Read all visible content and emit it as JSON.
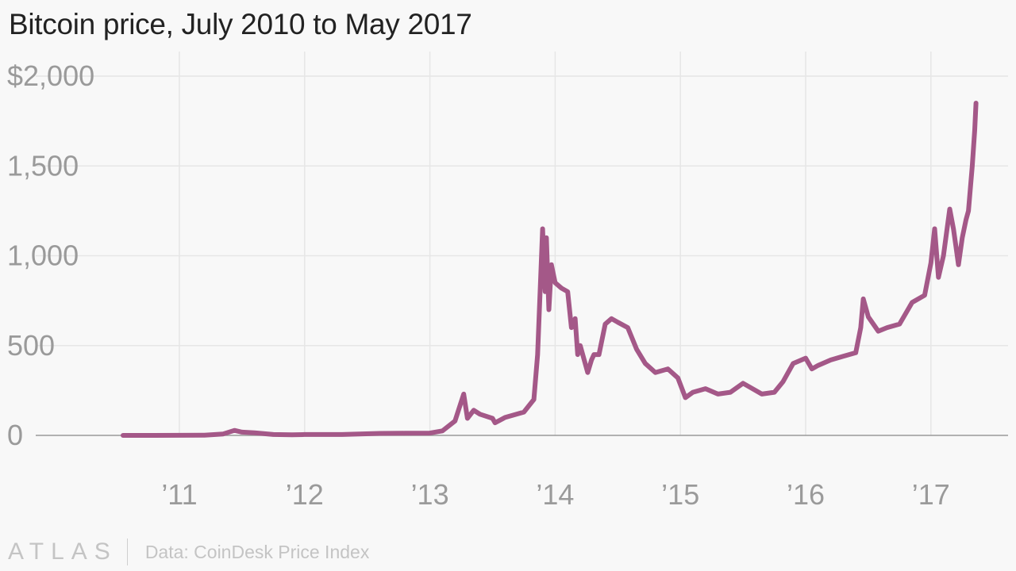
{
  "title": "Bitcoin price, July 2010 to May 2017",
  "footer": {
    "logo": "ATLAS",
    "source": "Data: CoinDesk Price Index"
  },
  "colors": {
    "line": "#a45888",
    "grid": "#e6e6e6",
    "axis": "#999999",
    "tick_text": "#9a9a9a",
    "background": "#f8f8f8"
  },
  "chart_data": {
    "type": "line",
    "title": "Bitcoin price, July 2010 to May 2017",
    "xlabel": "",
    "ylabel": "",
    "ylim": [
      0,
      2000
    ],
    "xlim": [
      2010.0,
      2017.6
    ],
    "yticks": [
      0,
      500,
      1000,
      1500,
      2000
    ],
    "ytick_labels": [
      "0",
      "500",
      "1,000",
      "1,500",
      "$2,000"
    ],
    "xticks": [
      2011,
      2012,
      2013,
      2014,
      2015,
      2016,
      2017
    ],
    "xtick_labels": [
      "’11",
      "’12",
      "’13",
      "’14",
      "’15",
      "’16",
      "’17"
    ],
    "grid": true,
    "series": [
      {
        "values_x": [
          2010.55,
          2010.8,
          2011.0,
          2011.2,
          2011.35,
          2011.44,
          2011.5,
          2011.6,
          2011.75,
          2011.9,
          2012.0,
          2012.3,
          2012.6,
          2012.8,
          2013.0,
          2013.1,
          2013.2,
          2013.27,
          2013.3,
          2013.35,
          2013.4,
          2013.5,
          2013.52,
          2013.6,
          2013.75,
          2013.83,
          2013.86,
          2013.9,
          2013.92,
          2013.93,
          2013.95,
          2013.97,
          2014.0,
          2014.05,
          2014.1,
          2014.13,
          2014.16,
          2014.18,
          2014.2,
          2014.26,
          2014.29,
          2014.31,
          2014.35,
          2014.4,
          2014.45,
          2014.5,
          2014.58,
          2014.65,
          2014.72,
          2014.8,
          2014.9,
          2014.98,
          2015.04,
          2015.1,
          2015.2,
          2015.3,
          2015.4,
          2015.5,
          2015.55,
          2015.65,
          2015.75,
          2015.82,
          2015.9,
          2016.0,
          2016.05,
          2016.1,
          2016.2,
          2016.3,
          2016.4,
          2016.44,
          2016.46,
          2016.5,
          2016.58,
          2016.65,
          2016.75,
          2016.85,
          2016.95,
          2017.0,
          2017.03,
          2017.06,
          2017.1,
          2017.15,
          2017.18,
          2017.2,
          2017.22,
          2017.25,
          2017.28,
          2017.3,
          2017.33,
          2017.35,
          2017.36
        ],
        "values": [
          0.1,
          0.2,
          0.3,
          1,
          8,
          28,
          18,
          14,
          5,
          3,
          5,
          5,
          11,
          12,
          13,
          25,
          80,
          230,
          95,
          140,
          118,
          95,
          70,
          100,
          130,
          200,
          450,
          1150,
          800,
          1100,
          700,
          950,
          850,
          820,
          800,
          600,
          650,
          450,
          500,
          350,
          420,
          450,
          450,
          620,
          650,
          630,
          600,
          480,
          400,
          350,
          370,
          320,
          210,
          240,
          260,
          230,
          240,
          290,
          270,
          230,
          240,
          300,
          400,
          430,
          370,
          390,
          420,
          440,
          460,
          600,
          760,
          660,
          580,
          600,
          620,
          740,
          780,
          960,
          1150,
          880,
          1000,
          1260,
          1150,
          1050,
          950,
          1100,
          1200,
          1250,
          1500,
          1700,
          1850
        ]
      }
    ]
  }
}
